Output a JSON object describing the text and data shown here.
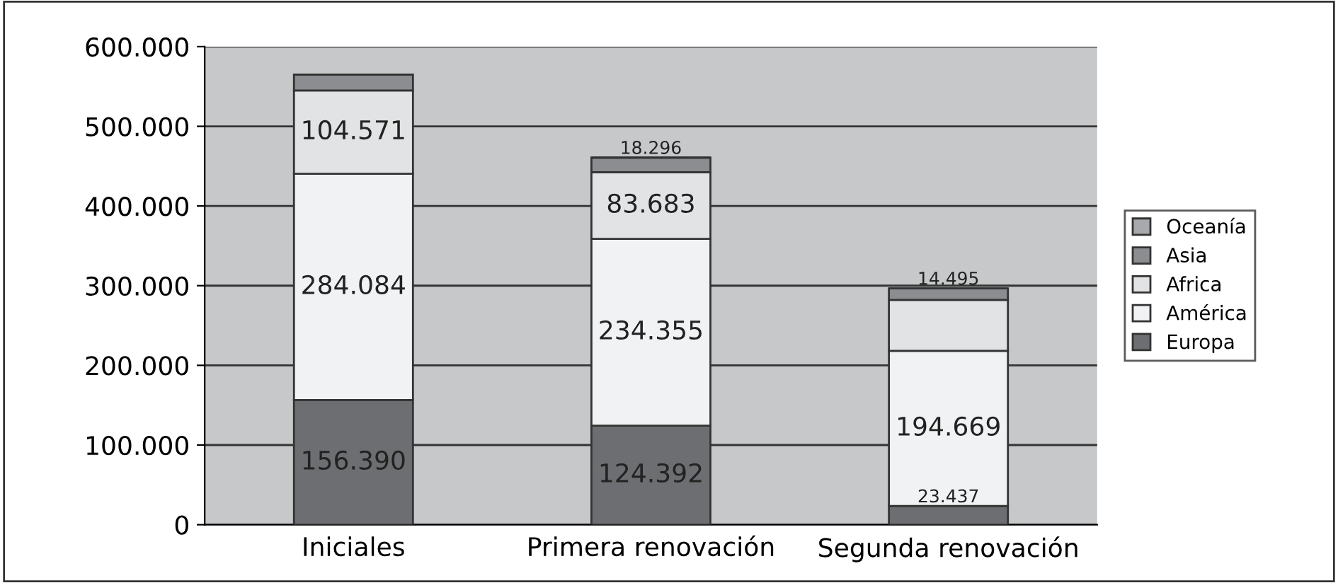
{
  "chart_data": {
    "type": "bar",
    "stacked": true,
    "categories": [
      "Iniciales",
      "Primera renovación",
      "Segunda renovación"
    ],
    "series": [
      {
        "name": "Europa",
        "color": "#6d6e71",
        "values": [
          156390,
          124392,
          23437
        ],
        "value_labels": [
          "156.390",
          "124.392",
          "23.437"
        ]
      },
      {
        "name": "América",
        "color": "#f1f2f3",
        "values": [
          284084,
          234355,
          194669
        ],
        "value_labels": [
          "284.084",
          "234.355",
          "194.669"
        ]
      },
      {
        "name": "Africa",
        "color": "#e2e3e4",
        "values": [
          104571,
          83683,
          64000
        ],
        "value_labels": [
          "104.571",
          "83.683",
          null
        ]
      },
      {
        "name": "Asia",
        "color": "#8c8d90",
        "values": [
          20000,
          18296,
          14495
        ],
        "value_labels": [
          null,
          "18.296",
          "14.495"
        ]
      },
      {
        "name": "Oceanía",
        "color": "#a7a9ac",
        "values": [
          null,
          null,
          null
        ]
      }
    ],
    "ylim": [
      0,
      600000
    ],
    "yticks": [
      {
        "value": 0,
        "label": "0"
      },
      {
        "value": 100000,
        "label": "100.000"
      },
      {
        "value": 200000,
        "label": "200.000"
      },
      {
        "value": 300000,
        "label": "300.000"
      },
      {
        "value": 400000,
        "label": "400.000"
      },
      {
        "value": 500000,
        "label": "500.000"
      },
      {
        "value": 600000,
        "label": "600.000"
      }
    ],
    "grid": "y",
    "legend": "right"
  }
}
